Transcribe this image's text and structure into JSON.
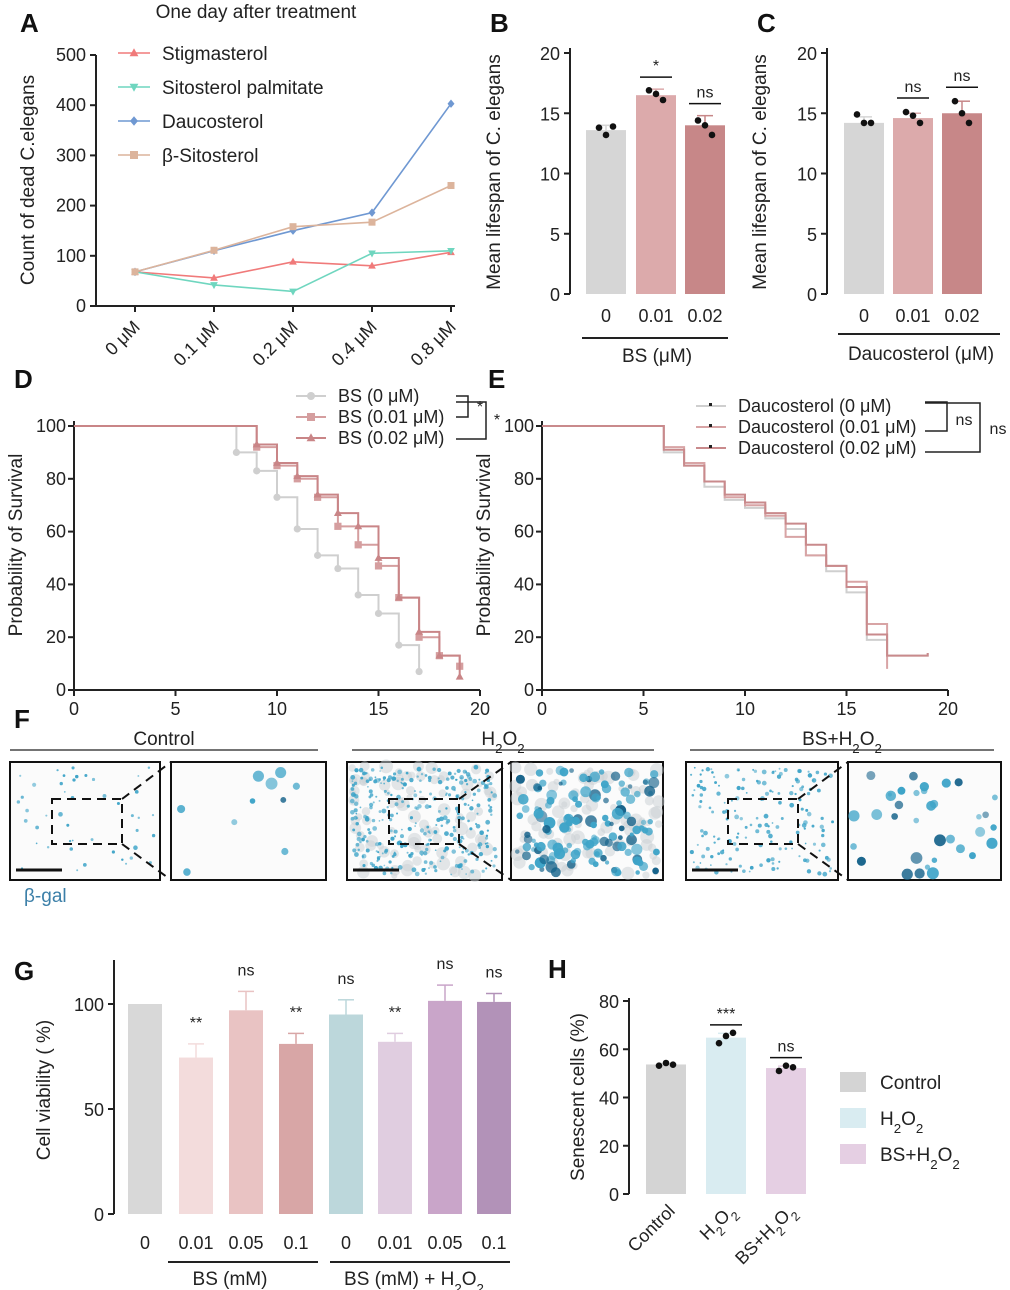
{
  "panel_labels": [
    "A",
    "B",
    "C",
    "D",
    "E",
    "F",
    "G",
    "H"
  ],
  "chart_data": [
    {
      "id": "A",
      "type": "line",
      "title": "One day after treatment",
      "xlabel": "",
      "ylabel": "Count of dead C.elegans",
      "categories": [
        "0 μM",
        "0.1 μM",
        "0.2 μM",
        "0.4 μM",
        "0.8 μM"
      ],
      "ylim": [
        0,
        500
      ],
      "yticks": [
        "0",
        "100",
        "200",
        "300",
        "400",
        "500"
      ],
      "series": [
        {
          "name": "Stigmasterol",
          "color": "#f07a7a",
          "marker": "triangle-up",
          "values": [
            68,
            56,
            88,
            80,
            107
          ]
        },
        {
          "name": "Sitosterol palmitate",
          "color": "#6fd6bf",
          "marker": "triangle-down",
          "values": [
            68,
            42,
            29,
            105,
            110
          ]
        },
        {
          "name": "Daucosterol",
          "color": "#6f98d2",
          "marker": "diamond",
          "values": [
            68,
            110,
            150,
            186,
            403
          ]
        },
        {
          "name": "β-Sitosterol",
          "color": "#dcb49c",
          "marker": "square",
          "values": [
            68,
            111,
            158,
            167,
            240
          ]
        }
      ]
    },
    {
      "id": "B",
      "type": "bar",
      "ylabel": "Mean lifespan of C. elegans",
      "xlabel": "BS (μM)",
      "categories": [
        "0",
        "0.01",
        "0.02"
      ],
      "values": [
        13.6,
        16.5,
        14.0
      ],
      "errors": [
        0.4,
        0.5,
        0.8
      ],
      "points": [
        [
          13.8,
          13.2,
          13.9
        ],
        [
          16.9,
          16.6,
          16.1
        ],
        [
          14.4,
          14.0,
          13.2
        ]
      ],
      "colors": [
        "#d6d6d6",
        "#dcaaab",
        "#c78788"
      ],
      "significance": [
        "",
        "*",
        "ns"
      ],
      "ylim": [
        0,
        20
      ],
      "yticks": [
        "0",
        "5",
        "10",
        "15",
        "20"
      ]
    },
    {
      "id": "C",
      "type": "bar",
      "ylabel": "Mean lifespan of C. elegans",
      "xlabel": "Daucosterol (μM)",
      "categories": [
        "0",
        "0.01",
        "0.02"
      ],
      "values": [
        14.2,
        14.6,
        15.0
      ],
      "errors": [
        0.5,
        0.4,
        1.0
      ],
      "points": [
        [
          14.9,
          14.2,
          14.2
        ],
        [
          15.1,
          14.8,
          14.2
        ],
        [
          16.0,
          15.0,
          14.2
        ]
      ],
      "colors": [
        "#d6d6d6",
        "#dcaaab",
        "#c78788"
      ],
      "significance": [
        "",
        "ns",
        "ns"
      ],
      "ylim": [
        0,
        20
      ],
      "yticks": [
        "0",
        "5",
        "10",
        "15",
        "20"
      ]
    },
    {
      "id": "D",
      "type": "line",
      "ylabel": "Probability of Survival",
      "xlabel": "",
      "xlim": [
        0,
        20
      ],
      "ylim": [
        0,
        100
      ],
      "xticks": [
        "0",
        "5",
        "10",
        "15",
        "20"
      ],
      "yticks": [
        "0",
        "20",
        "40",
        "60",
        "80",
        "100"
      ],
      "significance": [
        "*",
        "*"
      ],
      "series": [
        {
          "name": "BS  (0 μM)",
          "color": "#cfcfcf",
          "marker": "circle",
          "x": [
            0,
            8,
            9,
            10,
            11,
            12,
            13,
            14,
            15,
            16,
            17
          ],
          "y": [
            100,
            90,
            83,
            73,
            61,
            51,
            46,
            36,
            29,
            17,
            7
          ]
        },
        {
          "name": "BS  (0.01 μM)",
          "color": "#d59e9f",
          "marker": "square",
          "x": [
            0,
            9,
            10,
            11,
            12,
            13,
            14,
            15,
            16,
            17,
            18,
            19
          ],
          "y": [
            100,
            92,
            85,
            80,
            73,
            62,
            55,
            47,
            35,
            20,
            13,
            9
          ]
        },
        {
          "name": "BS  (0.02 μM)",
          "color": "#c98587",
          "marker": "triangle-up",
          "x": [
            0,
            9,
            10,
            11,
            12,
            13,
            14,
            15,
            16,
            17,
            18,
            19
          ],
          "y": [
            100,
            93,
            86,
            81,
            74,
            67,
            62,
            50,
            35,
            22,
            13,
            5
          ]
        }
      ]
    },
    {
      "id": "E",
      "type": "line",
      "ylabel": "Probability of Survival",
      "xlabel": "",
      "xlim": [
        0,
        20
      ],
      "ylim": [
        0,
        100
      ],
      "xticks": [
        "0",
        "5",
        "10",
        "15",
        "20"
      ],
      "yticks": [
        "0",
        "20",
        "40",
        "60",
        "80",
        "100"
      ],
      "significance": [
        "ns",
        "ns"
      ],
      "series": [
        {
          "name": "Daucosterol  (0 μM)",
          "color": "#cfcfcf",
          "x": [
            0,
            6,
            7,
            8,
            9,
            10,
            11,
            12,
            13,
            14,
            15,
            16,
            17,
            19
          ],
          "y": [
            100,
            90,
            85,
            77,
            72,
            69,
            65,
            61,
            51,
            45,
            37,
            19,
            13,
            14
          ]
        },
        {
          "name": "Daucosterol  (0.01 μM)",
          "color": "#d8a4a5",
          "x": [
            0,
            6,
            7,
            8,
            9,
            10,
            11,
            12,
            13,
            14,
            15,
            16,
            17
          ],
          "y": [
            100,
            92,
            86,
            79,
            73,
            70,
            66,
            58,
            51,
            47,
            41,
            25,
            8
          ]
        },
        {
          "name": "Daucosterol (0.02 μM)",
          "color": "#c98a8c",
          "x": [
            0,
            6,
            7,
            8,
            9,
            10,
            11,
            12,
            13,
            14,
            15,
            16,
            17,
            19
          ],
          "y": [
            100,
            91,
            85,
            79,
            74,
            71,
            67,
            63,
            55,
            47,
            39,
            21,
            13,
            14
          ]
        }
      ]
    },
    {
      "id": "G",
      "type": "bar",
      "ylabel": "Cell viability ( %)",
      "xlabel": "",
      "categories": [
        "0",
        "0.01",
        "0.05",
        "0.1",
        "0",
        "0.01",
        "0.05",
        "0.1"
      ],
      "group_labels": [
        "BS (mM)",
        "BS (mM) + H2O2"
      ],
      "values": [
        100,
        74.5,
        97,
        81,
        95,
        82,
        101.5,
        101
      ],
      "errors": [
        0,
        6.5,
        9,
        5,
        7,
        4,
        7.5,
        4
      ],
      "colors": [
        "#d8d8d8",
        "#f3dcdc",
        "#e9c3c3",
        "#d8a6a6",
        "#bcd7db",
        "#e0cde0",
        "#c9a5c9",
        "#b292b8"
      ],
      "significance": [
        "",
        "**",
        "ns",
        "**",
        "ns",
        "**",
        "ns",
        "ns"
      ],
      "ylim": [
        0,
        120
      ],
      "yticks": [
        "0",
        "50",
        "100"
      ]
    },
    {
      "id": "H",
      "type": "bar",
      "ylabel": "Senescent cells (%)",
      "xlabel": "",
      "categories": [
        "Control",
        "H2O2",
        "BS+H2O2"
      ],
      "values": [
        53.7,
        64.8,
        52.2
      ],
      "errors": [
        0.4,
        1.8,
        0.8
      ],
      "points": [
        [
          53.2,
          54.3,
          53.6
        ],
        [
          62.5,
          65.5,
          66.8
        ],
        [
          51.0,
          53.2,
          52.5
        ]
      ],
      "colors": [
        "#d4d4d4",
        "#d9ecf1",
        "#e5cfe3"
      ],
      "significance": [
        "",
        "***",
        "ns"
      ],
      "legend": [
        "Control",
        "H2O2",
        "BS+H2O2"
      ],
      "ylim": [
        0,
        80
      ],
      "yticks": [
        "0",
        "20",
        "40",
        "60",
        "80"
      ]
    }
  ],
  "micrographs": {
    "group_titles": [
      "Control",
      "H2O2",
      "BS+H2O2"
    ],
    "stain_label": "β-gal",
    "stain_color": "#3b7fa8",
    "dot_color": "#3ea4c8"
  }
}
